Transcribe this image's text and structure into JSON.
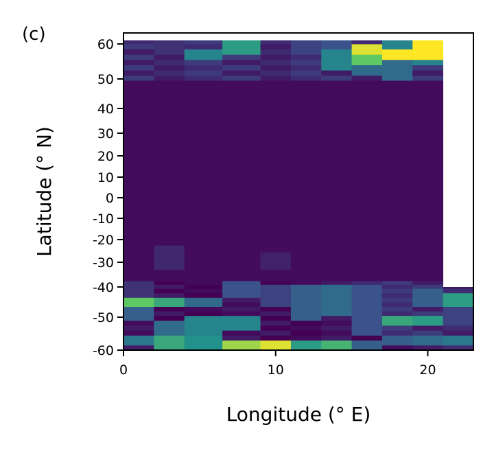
{
  "panel_label": "(c)",
  "chart_data": {
    "type": "heatmap",
    "xlabel": "Longitude (° E)",
    "ylabel": "Latitude (° N)",
    "xlim": [
      0,
      23
    ],
    "ylim": [
      -60,
      63
    ],
    "x_ticks": [
      0,
      10,
      20
    ],
    "x_tick_labels": [
      "0",
      "10",
      "20"
    ],
    "y_ticks": [
      60,
      50,
      40,
      30,
      20,
      10,
      0,
      -10,
      -20,
      -30,
      -40,
      -50,
      -60
    ],
    "y_tick_labels": [
      "60",
      "50",
      "40",
      "30",
      "20",
      "10",
      "0",
      "-10",
      "-20",
      "-30",
      "-40",
      "-50",
      "-60"
    ],
    "colormap": "viridis",
    "colors": {
      "low": "#440154",
      "mid": "#21918c",
      "high": "#fde725"
    },
    "columns": [
      {
        "x0": 0.0,
        "x1": 2.0,
        "lat_max": 61
      },
      {
        "x0": 2.0,
        "x1": 4.0,
        "lat_max": 61
      },
      {
        "x0": 4.0,
        "x1": 6.5,
        "lat_max": 61
      },
      {
        "x0": 6.5,
        "x1": 9.0,
        "lat_max": 61
      },
      {
        "x0": 9.0,
        "x1": 11.0,
        "lat_max": 61
      },
      {
        "x0": 11.0,
        "x1": 13.0,
        "lat_max": 61
      },
      {
        "x0": 13.0,
        "x1": 15.0,
        "lat_max": 61
      },
      {
        "x0": 15.0,
        "x1": 17.0,
        "lat_max": 61
      },
      {
        "x0": 17.0,
        "x1": 19.0,
        "lat_max": 61
      },
      {
        "x0": 19.0,
        "x1": 21.0,
        "lat_max": 61
      },
      {
        "x0": 21.0,
        "x1": 23.0,
        "lat_max": -40
      }
    ],
    "background_level": 0.03,
    "hotspots": [
      {
        "col": 0,
        "lat": [
          -46,
          -44
        ],
        "value": 0.75
      },
      {
        "col": 0,
        "lat": [
          -50,
          -48
        ],
        "value": 0.3
      },
      {
        "col": 0,
        "lat": [
          -58,
          -56
        ],
        "value": 0.4
      },
      {
        "col": 0,
        "lat": [
          -42,
          -38
        ],
        "value": 0.15
      },
      {
        "col": 0,
        "lat": [
          60,
          61
        ],
        "value": 0.12
      },
      {
        "col": 1,
        "lat": [
          -46,
          -44
        ],
        "value": 0.6
      },
      {
        "col": 1,
        "lat": [
          -59,
          -57
        ],
        "value": 0.6
      },
      {
        "col": 1,
        "lat": [
          -54,
          -52
        ],
        "value": 0.35
      },
      {
        "col": 1,
        "lat": [
          -32,
          -24
        ],
        "value": 0.12
      },
      {
        "col": 1,
        "lat": [
          58,
          60
        ],
        "value": 0.15
      },
      {
        "col": 2,
        "lat": [
          -59,
          -56
        ],
        "value": 0.5
      },
      {
        "col": 2,
        "lat": [
          -54,
          -50
        ],
        "value": 0.45
      },
      {
        "col": 2,
        "lat": [
          -46,
          -44
        ],
        "value": 0.35
      },
      {
        "col": 2,
        "lat": [
          56,
          58
        ],
        "value": 0.45
      },
      {
        "col": 3,
        "lat": [
          -60,
          -58
        ],
        "value": 0.85
      },
      {
        "col": 3,
        "lat": [
          -53,
          -50
        ],
        "value": 0.45
      },
      {
        "col": 3,
        "lat": [
          -42,
          -38
        ],
        "value": 0.25
      },
      {
        "col": 3,
        "lat": [
          58,
          60
        ],
        "value": 0.55
      },
      {
        "col": 4,
        "lat": [
          -60,
          -58.5
        ],
        "value": 0.95
      },
      {
        "col": 4,
        "lat": [
          -46,
          -40
        ],
        "value": 0.2
      },
      {
        "col": 4,
        "lat": [
          -32,
          -26
        ],
        "value": 0.1
      },
      {
        "col": 5,
        "lat": [
          -60,
          -58
        ],
        "value": 0.55
      },
      {
        "col": 5,
        "lat": [
          -50,
          -40
        ],
        "value": 0.3
      },
      {
        "col": 5,
        "lat": [
          58,
          60
        ],
        "value": 0.2
      },
      {
        "col": 6,
        "lat": [
          -60,
          -58
        ],
        "value": 0.65
      },
      {
        "col": 6,
        "lat": [
          -48,
          -40
        ],
        "value": 0.35
      },
      {
        "col": 6,
        "lat": [
          54,
          58
        ],
        "value": 0.45
      },
      {
        "col": 6,
        "lat": [
          60,
          61
        ],
        "value": 0.25
      },
      {
        "col": 7,
        "lat": [
          -60,
          -58
        ],
        "value": 0.3
      },
      {
        "col": 7,
        "lat": [
          -54,
          -40
        ],
        "value": 0.25
      },
      {
        "col": 7,
        "lat": [
          58,
          59
        ],
        "value": 0.95
      },
      {
        "col": 7,
        "lat": [
          55,
          56
        ],
        "value": 0.75
      },
      {
        "col": 7,
        "lat": [
          52,
          55
        ],
        "value": 0.35
      },
      {
        "col": 8,
        "lat": [
          -52,
          -50
        ],
        "value": 0.6
      },
      {
        "col": 8,
        "lat": [
          -58,
          -56
        ],
        "value": 0.3
      },
      {
        "col": 8,
        "lat": [
          56.5,
          57.5
        ],
        "value": 1.0
      },
      {
        "col": 8,
        "lat": [
          58,
          61
        ],
        "value": 0.45
      },
      {
        "col": 8,
        "lat": [
          51,
          54
        ],
        "value": 0.35
      },
      {
        "col": 9,
        "lat": [
          -52,
          -50
        ],
        "value": 0.55
      },
      {
        "col": 9,
        "lat": [
          -58,
          -56
        ],
        "value": 0.35
      },
      {
        "col": 9,
        "lat": [
          -46,
          -42
        ],
        "value": 0.3
      },
      {
        "col": 9,
        "lat": [
          57,
          61
        ],
        "value": 1.0
      },
      {
        "col": 9,
        "lat": [
          55,
          56
        ],
        "value": 0.45
      },
      {
        "col": 10,
        "lat": [
          -46,
          -43
        ],
        "value": 0.55
      },
      {
        "col": 10,
        "lat": [
          -58,
          -56
        ],
        "value": 0.4
      },
      {
        "col": 10,
        "lat": [
          -52,
          -48
        ],
        "value": 0.2
      }
    ]
  }
}
